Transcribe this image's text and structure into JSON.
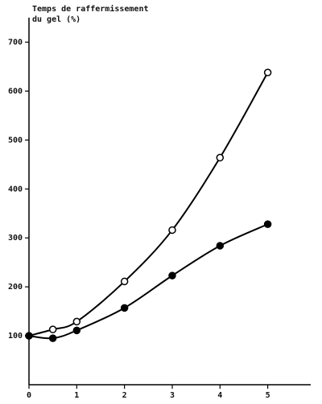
{
  "chart_data": {
    "type": "scatter",
    "ylabel": [
      "Temps de raffermissement",
      "du gel (%)"
    ],
    "series": [
      {
        "marker": "open",
        "color": "#000000",
        "x": [
          0,
          0.5,
          1,
          2,
          3,
          4,
          5
        ],
        "values": [
          100,
          113,
          129,
          211,
          316,
          464,
          638
        ]
      },
      {
        "marker": "filled",
        "color": "#000000",
        "x": [
          0,
          0.5,
          1,
          2,
          3,
          4,
          5
        ],
        "values": [
          100,
          95,
          111,
          157,
          223,
          284,
          328
        ]
      }
    ],
    "xlim": [
      0,
      5.9
    ],
    "xticks": [
      0,
      1,
      2,
      3,
      4,
      5
    ],
    "ylim": [
      0,
      750
    ],
    "yticks": [
      100,
      200,
      300,
      400,
      500,
      600,
      700
    ],
    "fit_curve": true
  }
}
